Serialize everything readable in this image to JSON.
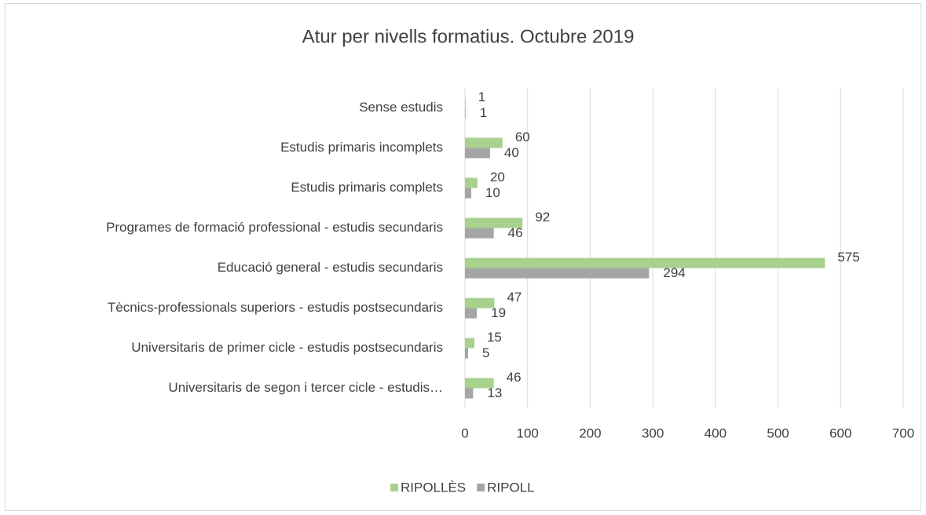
{
  "chart_data": {
    "type": "hbar",
    "title": "Atur per nivells formatius. Octubre 2019",
    "categories": [
      "Sense estudis",
      "Estudis primaris incomplets",
      "Estudis primaris complets",
      "Programes de formació professional - estudis secundaris",
      "Educació general - estudis secundaris",
      "Tècnics-professionals superiors - estudis postsecundaris",
      "Universitaris de primer cicle - estudis postsecundaris",
      "Universitaris de segon i tercer cicle - estudis…"
    ],
    "series": [
      {
        "name": "RIPOLLÈS",
        "color": "#a9d18e",
        "values": [
          1,
          60,
          20,
          92,
          575,
          47,
          15,
          46
        ]
      },
      {
        "name": "RIPOLL",
        "color": "#a5a5a5",
        "values": [
          1,
          40,
          10,
          46,
          294,
          19,
          5,
          13
        ]
      }
    ],
    "xlim": [
      0,
      700
    ],
    "xticks": [
      0,
      100,
      200,
      300,
      400,
      500,
      600,
      700
    ],
    "grid": true,
    "legend": "bottom"
  }
}
